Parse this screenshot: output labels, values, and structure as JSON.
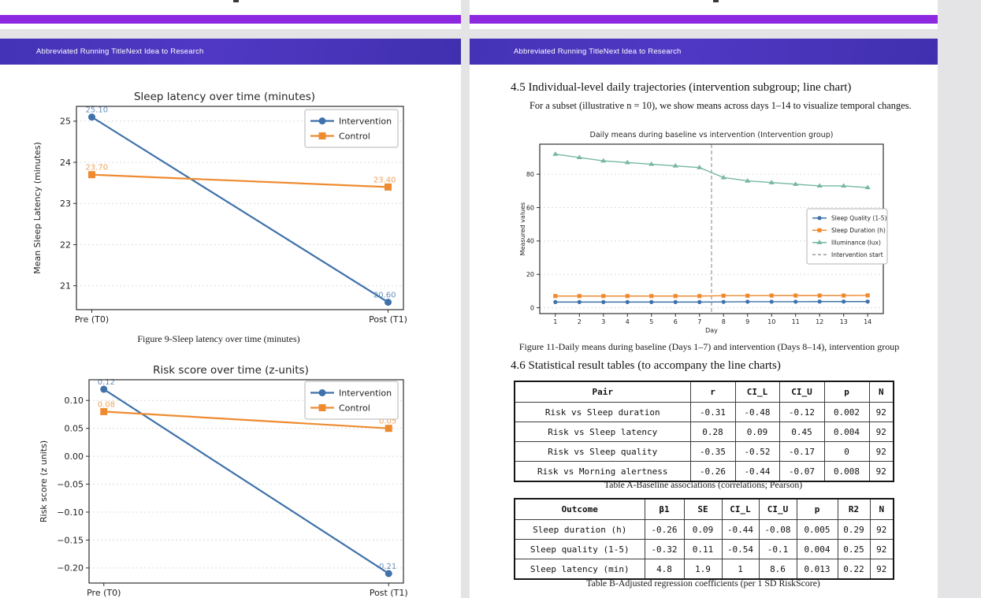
{
  "viewer": {
    "background": "#e4e4e6",
    "page_color": "#ffffff",
    "prev_page_footer_color": "#8b28e0"
  },
  "running_header": {
    "text": "Abbreviated Running TitleNext Idea to Research",
    "bg_color": "#4634ba",
    "text_color": "#ffffff"
  },
  "colors": {
    "intervention_blue": "#3f72aa",
    "control_orange": "#ee8b31",
    "illuminance_teal": "#76b7a4",
    "vline_gray": "#999999"
  },
  "left_page": {
    "figure9_caption": "Figure 9-Sleep latency over time (minutes)"
  },
  "right_page": {
    "section_4_5_heading": "4.5 Individual-level daily trajectories (intervention subgroup; line chart)",
    "section_4_5_body": "For a subset (illustrative n = 10), we show means across days 1–14 to visualize temporal changes.",
    "figure11_caption": "Figure 11-Daily means during baseline (Days 1–7) and intervention (Days 8–14), intervention group",
    "section_4_6_heading": "4.6 Statistical result tables (to accompany the line charts)",
    "table_a": {
      "headers": [
        "Pair",
        "r",
        "CI_L",
        "CI_U",
        "p",
        "N"
      ],
      "rows": [
        [
          "Risk vs Sleep duration",
          "-0.31",
          "-0.48",
          "-0.12",
          "0.002",
          "92"
        ],
        [
          "Risk vs Sleep latency",
          "0.28",
          "0.09",
          "0.45",
          "0.004",
          "92"
        ],
        [
          "Risk vs Sleep quality",
          "-0.35",
          "-0.52",
          "-0.17",
          "0",
          "92"
        ],
        [
          "Risk vs Morning alertness",
          "-0.26",
          "-0.44",
          "-0.07",
          "0.008",
          "92"
        ]
      ],
      "caption": "Table A-Baseline associations (correlations; Pearson)"
    },
    "table_b": {
      "headers": [
        "Outcome",
        "β1",
        "SE",
        "CI_L",
        "CI_U",
        "p",
        "R2",
        "N"
      ],
      "rows": [
        [
          "Sleep duration (h)",
          "-0.26",
          "0.09",
          "-0.44",
          "-0.08",
          "0.005",
          "0.29",
          "92"
        ],
        [
          "Sleep quality (1-5)",
          "-0.32",
          "0.11",
          "-0.54",
          "-0.1",
          "0.004",
          "0.25",
          "92"
        ],
        [
          "Sleep latency (min)",
          "4.8",
          "1.9",
          "1",
          "8.6",
          "0.013",
          "0.22",
          "92"
        ]
      ],
      "caption": "Table B-Adjusted regression coefficients (per 1 SD RiskScore)"
    }
  },
  "chart_data": [
    {
      "id": "fig9",
      "type": "line",
      "title": "Sleep latency over time (minutes)",
      "xlabel": "",
      "ylabel": "Mean Sleep Latency (minutes)",
      "categories": [
        "Pre (T0)",
        "Post (T1)"
      ],
      "series": [
        {
          "name": "Intervention",
          "color": "#3f72aa",
          "marker": "circle",
          "values": [
            25.1,
            20.6
          ],
          "point_labels": [
            "25.10",
            "20.60"
          ]
        },
        {
          "name": "Control",
          "color": "#ee8b31",
          "marker": "square",
          "values": [
            23.7,
            23.4
          ],
          "point_labels": [
            "23.70",
            "23.40"
          ]
        }
      ],
      "ylim": [
        20.42,
        25.36
      ],
      "yticks": [
        {
          "v": 21,
          "label": "21"
        },
        {
          "v": 22,
          "label": "22"
        },
        {
          "v": 23,
          "label": "23"
        },
        {
          "v": 24,
          "label": "24"
        },
        {
          "v": 25,
          "label": "25"
        }
      ],
      "grid": "y-dashed",
      "legend_position": "upper right"
    },
    {
      "id": "fig10",
      "type": "line",
      "title": "Risk score over time (z-units)",
      "xlabel": "",
      "ylabel": "Risk score (z units)",
      "categories": [
        "Pre (T0)",
        "Post (T1)"
      ],
      "series": [
        {
          "name": "Intervention",
          "color": "#3f72aa",
          "marker": "circle",
          "values": [
            0.12,
            -0.21
          ],
          "point_labels": [
            "0.12",
            "-0.21"
          ]
        },
        {
          "name": "Control",
          "color": "#ee8b31",
          "marker": "square",
          "values": [
            0.08,
            0.05
          ],
          "point_labels": [
            "0.08",
            "0.05"
          ]
        }
      ],
      "ylim": [
        -0.227,
        0.137
      ],
      "yticks": [
        {
          "v": 0.1,
          "label": "0.10"
        },
        {
          "v": 0.05,
          "label": "0.05"
        },
        {
          "v": 0.0,
          "label": "0.00"
        },
        {
          "v": -0.05,
          "label": "−0.05"
        },
        {
          "v": -0.1,
          "label": "−0.10"
        },
        {
          "v": -0.15,
          "label": "−0.15"
        },
        {
          "v": -0.2,
          "label": "−0.20"
        }
      ],
      "grid": "y-dashed",
      "legend_position": "upper right"
    },
    {
      "id": "fig11",
      "type": "line",
      "title": "Daily means during baseline vs intervention (Intervention group)",
      "xlabel": "Day",
      "ylabel": "Measured values",
      "x": [
        1,
        2,
        3,
        4,
        5,
        6,
        7,
        8,
        9,
        10,
        11,
        12,
        13,
        14
      ],
      "xlim": [
        0.35,
        14.65
      ],
      "xticks": [
        1,
        2,
        3,
        4,
        5,
        6,
        7,
        8,
        9,
        10,
        11,
        12,
        13,
        14
      ],
      "series": [
        {
          "name": "Sleep Quality (1-5)",
          "color": "#3f72aa",
          "marker": "circle",
          "values": [
            3.4,
            3.4,
            3.4,
            3.4,
            3.4,
            3.4,
            3.4,
            3.5,
            3.6,
            3.6,
            3.6,
            3.7,
            3.7,
            3.7
          ]
        },
        {
          "name": "Sleep Duration (h)",
          "color": "#ee8b31",
          "marker": "square",
          "values": [
            7.0,
            7.0,
            7.0,
            7.0,
            7.0,
            7.0,
            7.0,
            7.2,
            7.2,
            7.3,
            7.3,
            7.3,
            7.3,
            7.4
          ]
        },
        {
          "name": "Illuminance (lux)",
          "color": "#76b7a4",
          "marker": "triangle",
          "values": [
            92,
            90,
            88,
            87,
            86,
            85,
            84,
            78,
            76,
            75,
            74,
            73,
            73,
            72
          ]
        }
      ],
      "vline": {
        "x": 7.5,
        "label": "Intervention start",
        "style": "dashed",
        "color": "#999999"
      },
      "ylim": [
        -3.5,
        98
      ],
      "yticks": [
        {
          "v": 0,
          "label": "0"
        },
        {
          "v": 20,
          "label": "20"
        },
        {
          "v": 40,
          "label": "40"
        },
        {
          "v": 60,
          "label": "60"
        },
        {
          "v": 80,
          "label": "80"
        }
      ],
      "grid": "y-dashed",
      "legend_position": "center right"
    }
  ]
}
